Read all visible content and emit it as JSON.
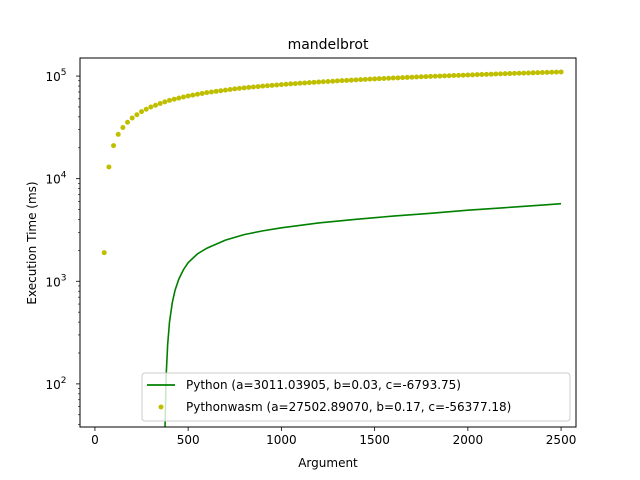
{
  "chart_data": {
    "type": "line",
    "title": "mandelbrot",
    "xlabel": "Argument",
    "ylabel": "Execution Time (ms)",
    "xlim": [
      -80,
      2580
    ],
    "ylim": [
      38,
      150000
    ],
    "yscale": "log",
    "grid": false,
    "legend_position": "lower-right",
    "x_ticks": [
      0,
      500,
      1000,
      1500,
      2000,
      2500
    ],
    "x_tick_labels": [
      "0",
      "500",
      "1000",
      "1500",
      "2000",
      "2500"
    ],
    "y_ticks": [
      100,
      1000,
      10000,
      100000
    ],
    "y_tick_base": "10",
    "y_tick_exponents": [
      "2",
      "3",
      "4",
      "5"
    ],
    "series": [
      {
        "name": "Python (a=3011.03905, b=0.03, c=-6793.75)",
        "kind": "line",
        "color": "#008000",
        "x": [
          376,
          382,
          390,
          400,
          415,
          430,
          450,
          475,
          500,
          550,
          600,
          700,
          800,
          900,
          1000,
          1200,
          1400,
          1600,
          1800,
          2000,
          2200,
          2400,
          2500
        ],
        "y": [
          38,
          120,
          240,
          400,
          620,
          820,
          1050,
          1300,
          1520,
          1850,
          2100,
          2520,
          2850,
          3100,
          3320,
          3700,
          4020,
          4320,
          4600,
          4930,
          5220,
          5530,
          5700
        ]
      },
      {
        "name": "Pythonwasm (a=27502.89070, b=0.17, c=-56377.18)",
        "kind": "scatter",
        "color": "#bfbf00",
        "x": [
          50,
          75,
          100,
          125,
          150,
          175,
          200,
          225,
          250,
          275,
          300,
          325,
          350,
          375,
          400,
          425,
          450,
          475,
          500,
          525,
          550,
          575,
          600,
          625,
          650,
          675,
          700,
          725,
          750,
          775,
          800,
          825,
          850,
          875,
          900,
          925,
          950,
          975,
          1000,
          1025,
          1050,
          1075,
          1100,
          1125,
          1150,
          1175,
          1200,
          1225,
          1250,
          1275,
          1300,
          1325,
          1350,
          1375,
          1400,
          1425,
          1450,
          1475,
          1500,
          1525,
          1550,
          1575,
          1600,
          1625,
          1650,
          1675,
          1700,
          1725,
          1750,
          1775,
          1800,
          1825,
          1850,
          1875,
          1900,
          1925,
          1950,
          1975,
          2000,
          2025,
          2050,
          2075,
          2100,
          2125,
          2150,
          2175,
          2200,
          2225,
          2250,
          2275,
          2300,
          2325,
          2350,
          2375,
          2400,
          2425,
          2450,
          2475,
          2500
        ],
        "y": [
          1900,
          13000,
          21000,
          27000,
          31500,
          35500,
          39000,
          42000,
          45000,
          47500,
          50000,
          52000,
          54000,
          56000,
          58000,
          59500,
          61000,
          62500,
          64000,
          65200,
          66500,
          67700,
          69000,
          70000,
          71000,
          72000,
          73000,
          74000,
          75000,
          75800,
          76700,
          77500,
          78300,
          79000,
          79800,
          80500,
          81200,
          81900,
          82600,
          83200,
          83900,
          84500,
          85100,
          85700,
          86300,
          86900,
          87500,
          88000,
          88600,
          89100,
          89700,
          90200,
          90700,
          91200,
          91800,
          92300,
          92800,
          93300,
          93800,
          94300,
          94700,
          95200,
          95700,
          96100,
          96600,
          97000,
          97500,
          97900,
          98400,
          98800,
          99200,
          99600,
          100000,
          100400,
          100800,
          101200,
          101600,
          102000,
          102400,
          102800,
          103200,
          103600,
          104000,
          104300,
          104700,
          105100,
          105500,
          105800,
          106200,
          106500,
          106900,
          107200,
          107600,
          107900,
          108300,
          108600,
          109000,
          109300,
          109700
        ]
      }
    ]
  }
}
